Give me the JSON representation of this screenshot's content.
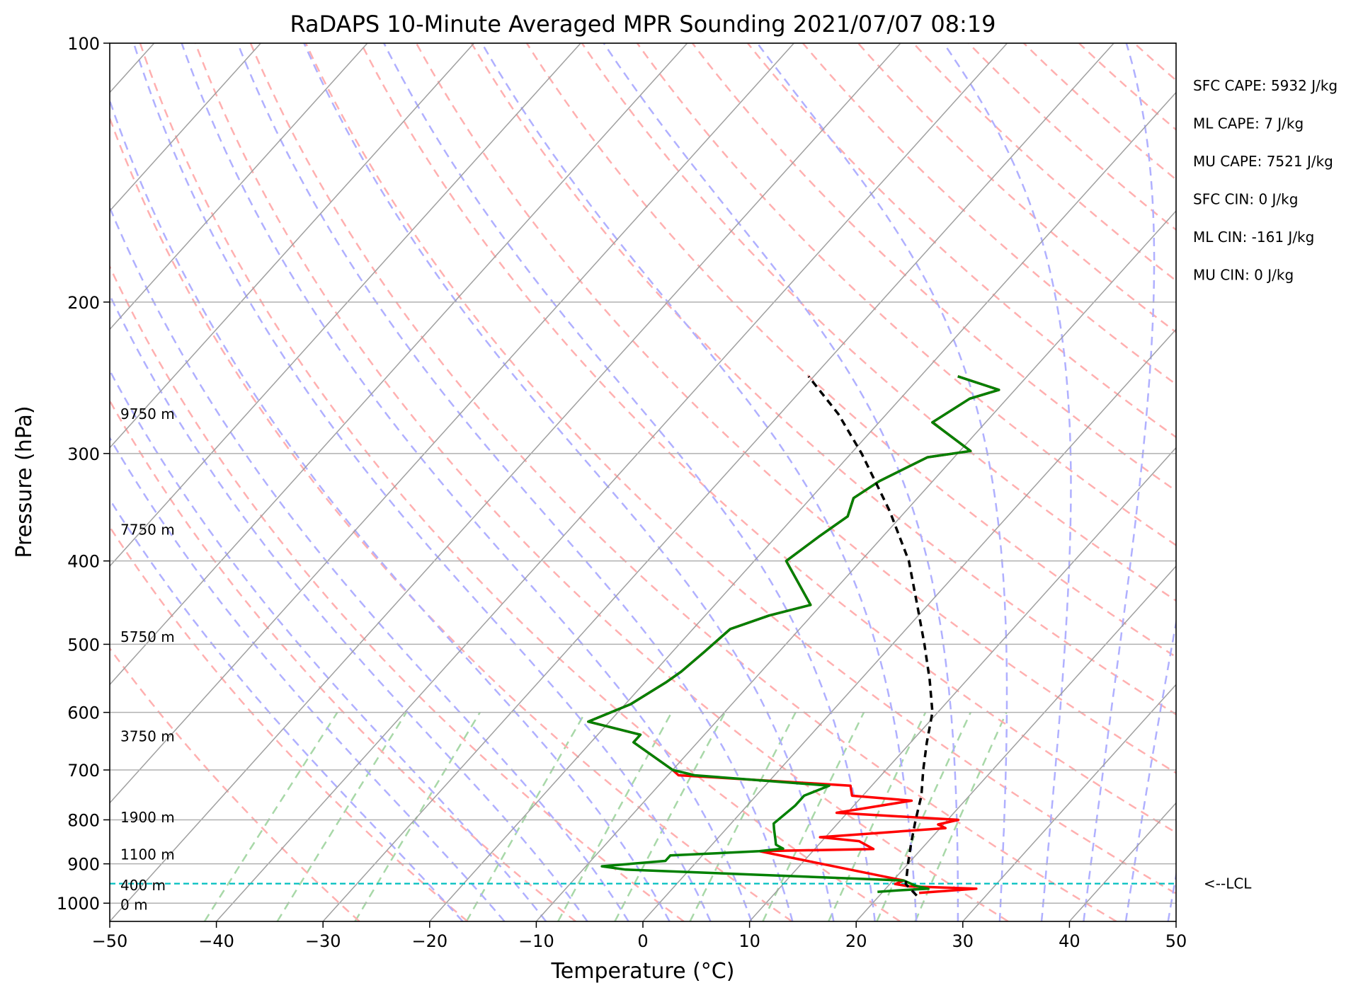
{
  "colors": {
    "temperature": "#ff0000",
    "dewpoint": "#008000",
    "parcel": "#000000",
    "lcl": "#00bfbf",
    "grid": "#b0b0b0",
    "isotherm": "#a0a0a0",
    "dry_adiabat": "#ffb0b0",
    "moist_adiabat": "#b0b0ff",
    "mixing_ratio": "#a8d8a8"
  },
  "chart_data": {
    "type": "line",
    "chart_kind": "skew-T log-p diagram",
    "title": "RaDAPS 10-Minute Averaged MPR Sounding 2021/07/07 08:19",
    "xlabel": "Temperature (°C)",
    "ylabel": "Pressure (hPa)",
    "xlim": [
      -50,
      50
    ],
    "ylim": [
      1050,
      100
    ],
    "y_scale": "log",
    "x_ticks": [
      -50,
      -40,
      -30,
      -20,
      -10,
      0,
      10,
      20,
      30,
      40,
      50
    ],
    "x_tick_labels": [
      "−50",
      "−40",
      "−30",
      "−20",
      "−10",
      "0",
      "10",
      "20",
      "30",
      "40",
      "50"
    ],
    "y_ticks": [
      100,
      200,
      300,
      400,
      500,
      600,
      700,
      800,
      900,
      1000
    ],
    "y_tick_labels": [
      "100",
      "200",
      "300",
      "400",
      "500",
      "600",
      "700",
      "800",
      "900",
      "1000"
    ],
    "grid": true,
    "series": [
      {
        "name": "Temperature",
        "color": "#ff0000",
        "points": [
          [
            973,
            23.5
          ],
          [
            962,
            28.5
          ],
          [
            956,
            22.0
          ],
          [
            950,
            20.5
          ],
          [
            941,
            21.0
          ],
          [
            870,
            5.0
          ],
          [
            865,
            15.5
          ],
          [
            847,
            13.5
          ],
          [
            838,
            9.5
          ],
          [
            818,
            20.5
          ],
          [
            810,
            19.5
          ],
          [
            800,
            21.0
          ],
          [
            785,
            9.0
          ],
          [
            760,
            15.0
          ],
          [
            750,
            9.0
          ],
          [
            730,
            8.0
          ],
          [
            710,
            -9.0
          ],
          [
            700,
            -10.0
          ],
          [
            650,
            -16.0
          ],
          [
            637,
            -16.0
          ],
          [
            615,
            -22.0
          ],
          [
            587,
            -19.5
          ],
          [
            553,
            -18.0
          ],
          [
            538,
            -17.5
          ],
          [
            510,
            -17.0
          ],
          [
            480,
            -16.5
          ],
          [
            463,
            -14.0
          ],
          [
            450,
            -11.0
          ],
          [
            400,
            -17.0
          ],
          [
            375,
            -16.0
          ],
          [
            355,
            -15.0
          ],
          [
            338,
            -16.0
          ],
          [
            323,
            -15.0
          ],
          [
            303,
            -12.5
          ],
          [
            298,
            -9.0
          ],
          [
            276,
            -15.0
          ],
          [
            259,
            -13.5
          ],
          [
            253,
            -11.5
          ],
          [
            244,
            -16.5
          ]
        ]
      },
      {
        "name": "Dewpoint",
        "color": "#008000",
        "points": [
          [
            970,
            19.5
          ],
          [
            966,
            21.5
          ],
          [
            962,
            24.0
          ],
          [
            954,
            22.5
          ],
          [
            941,
            21.0
          ],
          [
            914,
            -6.0
          ],
          [
            906,
            -8.5
          ],
          [
            893,
            -3.0
          ],
          [
            880,
            -3.0
          ],
          [
            870,
            5.0
          ],
          [
            864,
            7.0
          ],
          [
            855,
            6.0
          ],
          [
            843,
            5.5
          ],
          [
            820,
            4.5
          ],
          [
            808,
            4.0
          ],
          [
            770,
            4.5
          ],
          [
            750,
            4.5
          ],
          [
            730,
            6.0
          ],
          [
            710,
            -7.5
          ],
          [
            700,
            -10.0
          ],
          [
            650,
            -16.0
          ],
          [
            637,
            -16.0
          ],
          [
            615,
            -22.0
          ],
          [
            587,
            -19.5
          ],
          [
            553,
            -18.0
          ],
          [
            538,
            -17.5
          ],
          [
            510,
            -17.0
          ],
          [
            480,
            -16.5
          ],
          [
            463,
            -14.0
          ],
          [
            450,
            -11.0
          ],
          [
            400,
            -17.0
          ],
          [
            375,
            -16.0
          ],
          [
            355,
            -15.0
          ],
          [
            338,
            -16.0
          ],
          [
            323,
            -15.0
          ],
          [
            303,
            -12.5
          ],
          [
            298,
            -9.0
          ],
          [
            276,
            -15.0
          ],
          [
            259,
            -13.5
          ],
          [
            253,
            -11.5
          ],
          [
            244,
            -16.5
          ]
        ]
      },
      {
        "name": "Parcel",
        "color": "#000000",
        "dashed": true,
        "points": [
          [
            980,
            23.5
          ],
          [
            950,
            21.5
          ],
          [
            900,
            20.0
          ],
          [
            850,
            18.5
          ],
          [
            800,
            17.0
          ],
          [
            750,
            15.5
          ],
          [
            700,
            13.5
          ],
          [
            650,
            11.5
          ],
          [
            600,
            9.5
          ],
          [
            550,
            6.5
          ],
          [
            500,
            3.0
          ],
          [
            450,
            -1.0
          ],
          [
            400,
            -5.5
          ],
          [
            350,
            -11.5
          ],
          [
            300,
            -19.0
          ],
          [
            270,
            -24.5
          ],
          [
            244,
            -30.5
          ]
        ]
      }
    ],
    "lcl": {
      "pressure": 949,
      "label": "<--LCL"
    },
    "height_labels": [
      {
        "text": "9750 m",
        "pressure": 270
      },
      {
        "text": "7750 m",
        "pressure": 368
      },
      {
        "text": "5750 m",
        "pressure": 490
      },
      {
        "text": "3750 m",
        "pressure": 640
      },
      {
        "text": "1900 m",
        "pressure": 795
      },
      {
        "text": "1100 m",
        "pressure": 878
      },
      {
        "text": "400 m",
        "pressure": 953
      },
      {
        "text": "0 m",
        "pressure": 1004
      }
    ],
    "stats": [
      "SFC CAPE: 5932 J/kg",
      "ML CAPE: 7 J/kg",
      "MU CAPE: 7521 J/kg",
      "SFC CIN: 0 J/kg",
      "ML CIN: -161 J/kg",
      "MU CIN: 0 J/kg"
    ]
  }
}
